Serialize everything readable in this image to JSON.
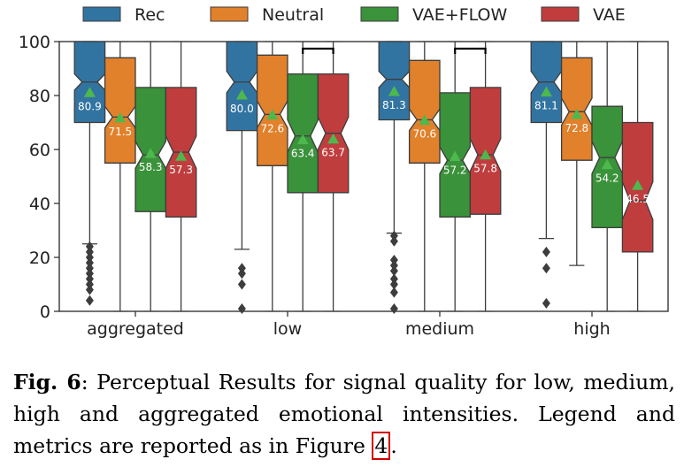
{
  "chart_data": {
    "type": "box",
    "categories": [
      "aggregated",
      "low",
      "medium",
      "high"
    ],
    "ylim": [
      0,
      100
    ],
    "yticks": [
      0,
      20,
      40,
      60,
      80,
      100
    ],
    "legend_position": "top",
    "grid": false,
    "colors": {
      "Rec": "#3274a1",
      "Neutral": "#e1812c",
      "VAE+FLOW": "#3a923a",
      "VAE": "#c03d3e",
      "mean_marker": "#4db84d"
    },
    "series": [
      {
        "name": "Rec",
        "boxes": [
          {
            "q1": 70,
            "median": 85,
            "q3": 100,
            "lo": 25,
            "hi": 100,
            "notch_lo": 82,
            "notch_hi": 88,
            "mean": 80.9,
            "label": "80.9",
            "fliers": [
              24,
              22,
              20,
              18,
              16,
              14,
              12,
              10,
              8,
              4
            ]
          },
          {
            "q1": 67,
            "median": 85,
            "q3": 100,
            "lo": 23,
            "hi": 100,
            "notch_lo": 81,
            "notch_hi": 89,
            "mean": 80.0,
            "label": "80.0",
            "fliers": [
              16,
              14,
              10,
              1
            ]
          },
          {
            "q1": 71,
            "median": 86,
            "q3": 100,
            "lo": 29,
            "hi": 100,
            "notch_lo": 83,
            "notch_hi": 89,
            "mean": 81.3,
            "label": "81.3",
            "fliers": [
              28,
              26,
              19,
              17,
              15,
              12,
              10,
              7,
              1
            ]
          },
          {
            "q1": 70,
            "median": 85,
            "q3": 100,
            "lo": 27,
            "hi": 100,
            "notch_lo": 81,
            "notch_hi": 89,
            "mean": 81.1,
            "label": "81.1",
            "fliers": [
              22,
              16,
              3
            ]
          }
        ]
      },
      {
        "name": "Neutral",
        "boxes": [
          {
            "q1": 55,
            "median": 72,
            "q3": 94,
            "lo": 0,
            "hi": 100,
            "notch_lo": 68,
            "notch_hi": 76,
            "mean": 71.5,
            "label": "71.5",
            "fliers": []
          },
          {
            "q1": 54,
            "median": 73,
            "q3": 95,
            "lo": 0,
            "hi": 100,
            "notch_lo": 68,
            "notch_hi": 78,
            "mean": 72.6,
            "label": "72.6",
            "fliers": []
          },
          {
            "q1": 55,
            "median": 71,
            "q3": 93,
            "lo": 0,
            "hi": 100,
            "notch_lo": 67,
            "notch_hi": 75,
            "mean": 70.6,
            "label": "70.6",
            "fliers": []
          },
          {
            "q1": 56,
            "median": 74,
            "q3": 94,
            "lo": 17,
            "hi": 100,
            "notch_lo": 69,
            "notch_hi": 79,
            "mean": 72.8,
            "label": "72.8",
            "fliers": []
          }
        ]
      },
      {
        "name": "VAE+FLOW",
        "boxes": [
          {
            "q1": 37,
            "median": 58,
            "q3": 83,
            "lo": 0,
            "hi": 100,
            "notch_lo": 53,
            "notch_hi": 63,
            "mean": 58.3,
            "label": "58.3",
            "fliers": []
          },
          {
            "q1": 44,
            "median": 65,
            "q3": 88,
            "lo": 0,
            "hi": 100,
            "notch_lo": 59,
            "notch_hi": 71,
            "mean": 63.4,
            "label": "63.4",
            "fliers": []
          },
          {
            "q1": 35,
            "median": 56,
            "q3": 81,
            "lo": 0,
            "hi": 100,
            "notch_lo": 51,
            "notch_hi": 61,
            "mean": 57.2,
            "label": "57.2",
            "fliers": []
          },
          {
            "q1": 31,
            "median": 57,
            "q3": 76,
            "lo": 0,
            "hi": 100,
            "notch_lo": 51,
            "notch_hi": 63,
            "mean": 54.2,
            "label": "54.2",
            "fliers": []
          }
        ]
      },
      {
        "name": "VAE",
        "boxes": [
          {
            "q1": 35,
            "median": 59,
            "q3": 83,
            "lo": 0,
            "hi": 100,
            "notch_lo": 53,
            "notch_hi": 65,
            "mean": 57.3,
            "label": "57.3",
            "fliers": []
          },
          {
            "q1": 44,
            "median": 66,
            "q3": 88,
            "lo": 0,
            "hi": 100,
            "notch_lo": 60,
            "notch_hi": 72,
            "mean": 63.7,
            "label": "63.7",
            "fliers": []
          },
          {
            "q1": 36,
            "median": 58,
            "q3": 83,
            "lo": 0,
            "hi": 100,
            "notch_lo": 52,
            "notch_hi": 64,
            "mean": 57.8,
            "label": "57.8",
            "fliers": []
          },
          {
            "q1": 22,
            "median": 41,
            "q3": 70,
            "lo": 0,
            "hi": 100,
            "notch_lo": 34,
            "notch_hi": 48,
            "mean": 46.5,
            "label": "46.5",
            "fliers": []
          }
        ]
      }
    ],
    "significance_brackets": [
      {
        "category": "low",
        "from_series": "VAE+FLOW",
        "to_series": "VAE"
      },
      {
        "category": "medium",
        "from_series": "VAE+FLOW",
        "to_series": "VAE"
      }
    ]
  },
  "caption": {
    "label": "Fig. 6",
    "text": ": Perceptual Results for signal quality for low, medium, high and aggregated emotional intensities. Legend and metrics are reported as in Figure ",
    "ref": "4",
    "end": "."
  }
}
